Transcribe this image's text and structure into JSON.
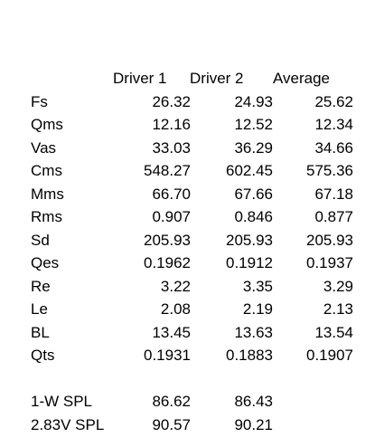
{
  "table": {
    "headers": [
      "Driver 1",
      "Driver 2",
      "Average"
    ],
    "rows": [
      {
        "label": "Fs",
        "d1": "26.32",
        "d2": "24.93",
        "avg": "25.62"
      },
      {
        "label": "Qms",
        "d1": "12.16",
        "d2": "12.52",
        "avg": "12.34"
      },
      {
        "label": "Vas",
        "d1": "33.03",
        "d2": "36.29",
        "avg": "34.66"
      },
      {
        "label": "Cms",
        "d1": "548.27",
        "d2": "602.45",
        "avg": "575.36"
      },
      {
        "label": "Mms",
        "d1": "66.70",
        "d2": "67.66",
        "avg": "67.18"
      },
      {
        "label": "Rms",
        "d1": "0.907",
        "d2": "0.846",
        "avg": "0.877"
      },
      {
        "label": "Sd",
        "d1": "205.93",
        "d2": "205.93",
        "avg": "205.93"
      },
      {
        "label": "Qes",
        "d1": "0.1962",
        "d2": "0.1912",
        "avg": "0.1937"
      },
      {
        "label": "Re",
        "d1": "3.22",
        "d2": "3.35",
        "avg": "3.29"
      },
      {
        "label": "Le",
        "d1": "2.08",
        "d2": "2.19",
        "avg": "2.13"
      },
      {
        "label": "BL",
        "d1": "13.45",
        "d2": "13.63",
        "avg": "13.54"
      },
      {
        "label": "Qts",
        "d1": "0.1931",
        "d2": "0.1883",
        "avg": "0.1907"
      }
    ],
    "spl_rows": [
      {
        "label": "1-W SPL",
        "d1": "86.62",
        "d2": "86.43"
      },
      {
        "label": "2.83V SPL",
        "d1": "90.57",
        "d2": "90.21"
      }
    ]
  }
}
